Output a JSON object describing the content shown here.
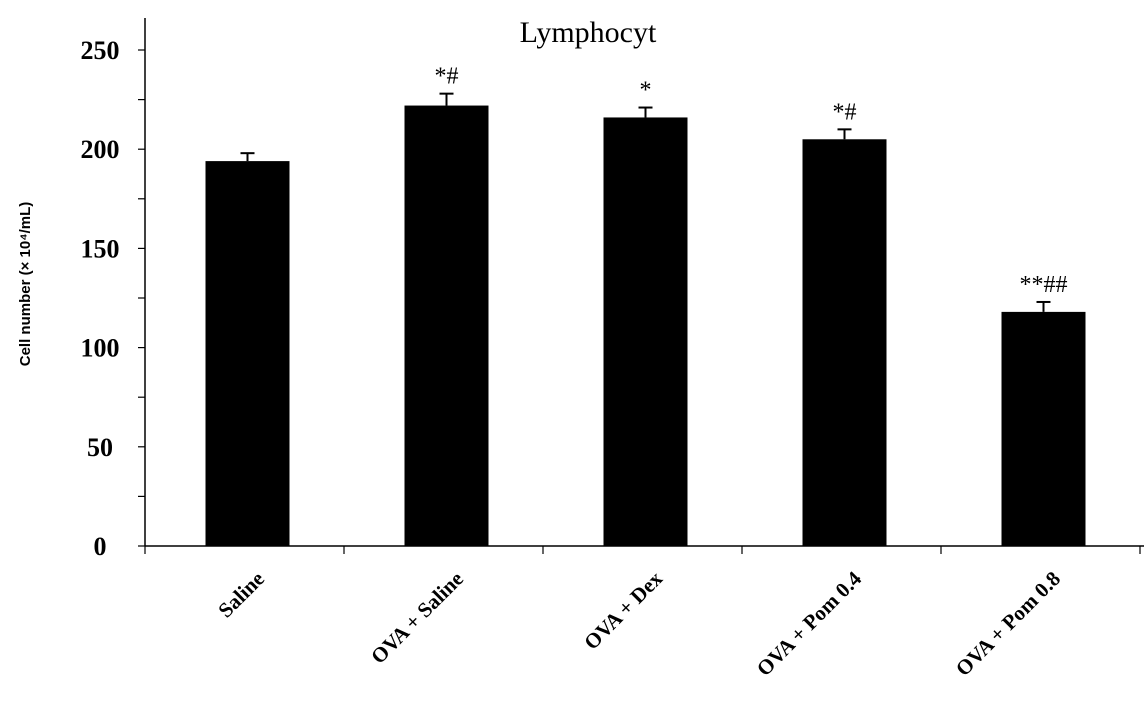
{
  "chart_data": {
    "type": "bar",
    "title": "Lymphocyt",
    "xlabel": "",
    "ylabel": "Cell number (× 10⁴/mL)",
    "ylim": [
      0,
      250
    ],
    "y_tick_labels": [
      "0",
      "50",
      "100",
      "150",
      "200",
      "250"
    ],
    "categories": [
      "Saline",
      "OVA + Saline",
      "OVA + Dex",
      "OVA + Pom 0.4",
      "OVA + Pom 0.8"
    ],
    "values": [
      194,
      222,
      216,
      205,
      118
    ],
    "error": [
      4,
      6,
      5,
      5,
      5
    ],
    "annotations": [
      "",
      "*#",
      "*",
      "*#",
      "**##"
    ],
    "bar_color": "#000000",
    "grid": false,
    "legend": "none"
  }
}
